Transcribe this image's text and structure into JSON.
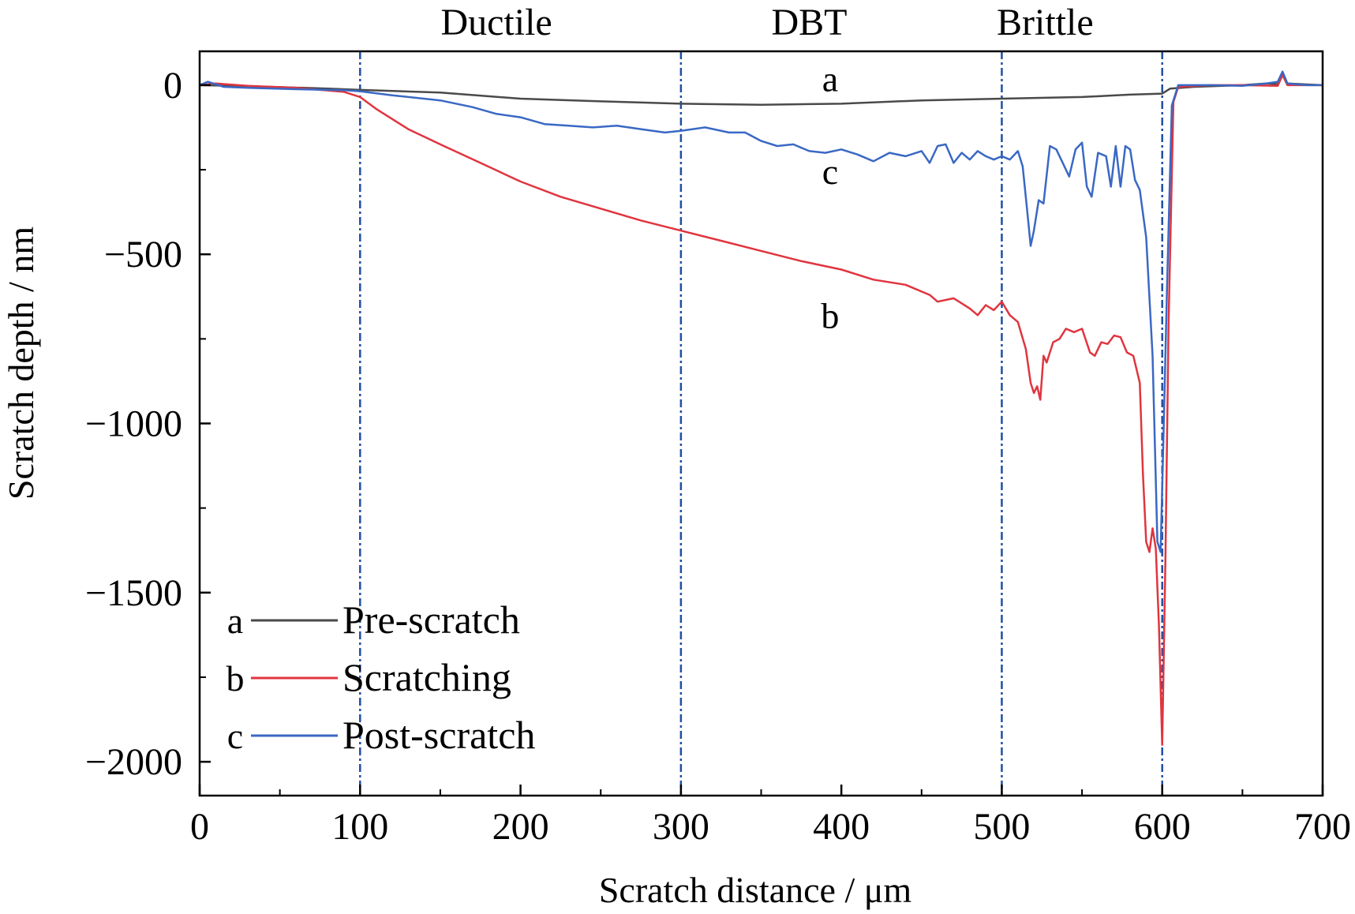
{
  "chart_data": {
    "type": "line",
    "xlabel": "Scratch distance / μm",
    "ylabel": "Scratch depth / nm",
    "xlim": [
      0,
      700
    ],
    "ylim": [
      -2100,
      100
    ],
    "x_ticks": [
      0,
      100,
      200,
      300,
      400,
      500,
      600,
      700
    ],
    "x_tick_labels": [
      "0",
      "100",
      "200",
      "300",
      "400",
      "500",
      "600",
      "700"
    ],
    "y_ticks": [
      0,
      -500,
      -1000,
      -1500,
      -2000
    ],
    "y_tick_labels": [
      "0",
      "−500",
      "−1000",
      "−1500",
      "−2000"
    ],
    "grid": false,
    "legend_position": "bottom-left",
    "region_dividers": [
      100,
      300,
      500,
      600
    ],
    "region_labels": [
      {
        "text": "Ductile",
        "x": 185
      },
      {
        "text": "DBT",
        "x": 380
      },
      {
        "text": "Brittle",
        "x": 527
      }
    ],
    "curve_labels": [
      {
        "text": "a",
        "x": 393,
        "y": 20
      },
      {
        "text": "c",
        "x": 393,
        "y": -255
      },
      {
        "text": "b",
        "x": 393,
        "y": -680
      }
    ],
    "series": [
      {
        "key": "a",
        "name": "Pre-scratch",
        "color": "#4a4a4a",
        "points": [
          [
            0,
            0
          ],
          [
            20,
            -2
          ],
          [
            50,
            -6
          ],
          [
            80,
            -10
          ],
          [
            100,
            -14
          ],
          [
            150,
            -22
          ],
          [
            200,
            -40
          ],
          [
            250,
            -48
          ],
          [
            300,
            -55
          ],
          [
            350,
            -58
          ],
          [
            400,
            -55
          ],
          [
            450,
            -45
          ],
          [
            500,
            -40
          ],
          [
            550,
            -35
          ],
          [
            580,
            -28
          ],
          [
            600,
            -25
          ],
          [
            605,
            -10
          ],
          [
            620,
            -5
          ],
          [
            650,
            0
          ],
          [
            665,
            5
          ],
          [
            672,
            3
          ],
          [
            675,
            35
          ],
          [
            678,
            5
          ],
          [
            690,
            2
          ],
          [
            700,
            0
          ]
        ]
      },
      {
        "key": "b",
        "name": "Scratching",
        "color": "#e0353f",
        "points": [
          [
            0,
            0
          ],
          [
            10,
            5
          ],
          [
            30,
            -2
          ],
          [
            60,
            -8
          ],
          [
            90,
            -20
          ],
          [
            100,
            -35
          ],
          [
            110,
            -70
          ],
          [
            130,
            -130
          ],
          [
            150,
            -175
          ],
          [
            175,
            -230
          ],
          [
            200,
            -285
          ],
          [
            225,
            -330
          ],
          [
            250,
            -365
          ],
          [
            275,
            -400
          ],
          [
            300,
            -430
          ],
          [
            325,
            -460
          ],
          [
            350,
            -490
          ],
          [
            375,
            -520
          ],
          [
            400,
            -545
          ],
          [
            420,
            -575
          ],
          [
            440,
            -590
          ],
          [
            455,
            -620
          ],
          [
            460,
            -640
          ],
          [
            470,
            -630
          ],
          [
            480,
            -660
          ],
          [
            485,
            -680
          ],
          [
            490,
            -650
          ],
          [
            495,
            -665
          ],
          [
            500,
            -640
          ],
          [
            505,
            -680
          ],
          [
            510,
            -700
          ],
          [
            515,
            -780
          ],
          [
            518,
            -880
          ],
          [
            520,
            -910
          ],
          [
            522,
            -890
          ],
          [
            524,
            -930
          ],
          [
            526,
            -800
          ],
          [
            528,
            -820
          ],
          [
            532,
            -760
          ],
          [
            536,
            -750
          ],
          [
            540,
            -720
          ],
          [
            545,
            -730
          ],
          [
            550,
            -720
          ],
          [
            555,
            -790
          ],
          [
            558,
            -800
          ],
          [
            562,
            -760
          ],
          [
            566,
            -765
          ],
          [
            570,
            -740
          ],
          [
            574,
            -745
          ],
          [
            578,
            -790
          ],
          [
            582,
            -800
          ],
          [
            586,
            -880
          ],
          [
            588,
            -1150
          ],
          [
            590,
            -1350
          ],
          [
            592,
            -1380
          ],
          [
            594,
            -1310
          ],
          [
            596,
            -1370
          ],
          [
            598,
            -1600
          ],
          [
            600,
            -1950
          ],
          [
            602,
            -1400
          ],
          [
            604,
            -700
          ],
          [
            607,
            -50
          ],
          [
            610,
            -5
          ],
          [
            630,
            0
          ],
          [
            650,
            0
          ],
          [
            672,
            -2
          ],
          [
            675,
            30
          ],
          [
            678,
            0
          ],
          [
            700,
            0
          ]
        ]
      },
      {
        "key": "c",
        "name": "Post-scratch",
        "color": "#3a68c4",
        "points": [
          [
            0,
            0
          ],
          [
            5,
            10
          ],
          [
            15,
            -5
          ],
          [
            30,
            -8
          ],
          [
            60,
            -12
          ],
          [
            90,
            -15
          ],
          [
            100,
            -18
          ],
          [
            120,
            -30
          ],
          [
            150,
            -45
          ],
          [
            170,
            -65
          ],
          [
            185,
            -85
          ],
          [
            200,
            -95
          ],
          [
            215,
            -115
          ],
          [
            230,
            -120
          ],
          [
            245,
            -125
          ],
          [
            260,
            -120
          ],
          [
            275,
            -130
          ],
          [
            290,
            -140
          ],
          [
            300,
            -135
          ],
          [
            315,
            -125
          ],
          [
            330,
            -140
          ],
          [
            340,
            -140
          ],
          [
            350,
            -165
          ],
          [
            360,
            -180
          ],
          [
            370,
            -175
          ],
          [
            380,
            -195
          ],
          [
            390,
            -200
          ],
          [
            400,
            -190
          ],
          [
            410,
            -205
          ],
          [
            420,
            -225
          ],
          [
            430,
            -200
          ],
          [
            440,
            -210
          ],
          [
            450,
            -195
          ],
          [
            455,
            -230
          ],
          [
            460,
            -180
          ],
          [
            465,
            -175
          ],
          [
            470,
            -230
          ],
          [
            475,
            -200
          ],
          [
            480,
            -220
          ],
          [
            485,
            -195
          ],
          [
            490,
            -210
          ],
          [
            495,
            -220
          ],
          [
            500,
            -210
          ],
          [
            505,
            -220
          ],
          [
            510,
            -195
          ],
          [
            513,
            -240
          ],
          [
            516,
            -380
          ],
          [
            518,
            -475
          ],
          [
            520,
            -430
          ],
          [
            523,
            -340
          ],
          [
            526,
            -350
          ],
          [
            530,
            -180
          ],
          [
            534,
            -190
          ],
          [
            538,
            -230
          ],
          [
            542,
            -270
          ],
          [
            546,
            -190
          ],
          [
            550,
            -170
          ],
          [
            553,
            -300
          ],
          [
            556,
            -330
          ],
          [
            560,
            -200
          ],
          [
            565,
            -210
          ],
          [
            568,
            -300
          ],
          [
            571,
            -180
          ],
          [
            574,
            -300
          ],
          [
            577,
            -180
          ],
          [
            580,
            -190
          ],
          [
            583,
            -280
          ],
          [
            586,
            -310
          ],
          [
            590,
            -450
          ],
          [
            594,
            -800
          ],
          [
            597,
            -1350
          ],
          [
            599,
            -1380
          ],
          [
            601,
            -1000
          ],
          [
            603,
            -600
          ],
          [
            606,
            -60
          ],
          [
            610,
            0
          ],
          [
            630,
            0
          ],
          [
            650,
            -2
          ],
          [
            665,
            5
          ],
          [
            672,
            10
          ],
          [
            675,
            40
          ],
          [
            678,
            5
          ],
          [
            690,
            0
          ],
          [
            700,
            0
          ]
        ]
      }
    ]
  }
}
